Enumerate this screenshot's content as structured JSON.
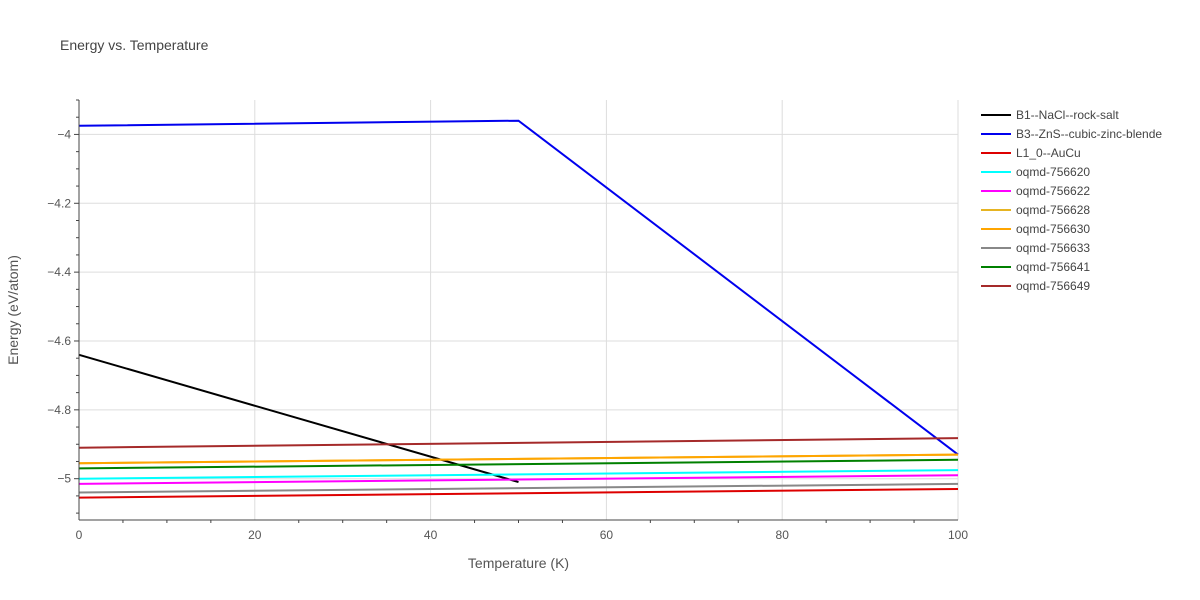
{
  "chart_data": {
    "type": "line",
    "title": "Energy vs. Temperature",
    "xlabel": "Temperature (K)",
    "ylabel": "Energy (eV/atom)",
    "xlim": [
      0,
      100
    ],
    "ylim": [
      -5.12,
      -3.9
    ],
    "x_ticks": [
      0,
      20,
      40,
      60,
      80,
      100
    ],
    "y_ticks": [
      -4,
      -4.2,
      -4.4,
      -4.6,
      -4.8,
      -5
    ],
    "y_tick_labels": [
      "−4",
      "−4.2",
      "−4.4",
      "−4.6",
      "−4.8",
      "−5"
    ],
    "grid": true,
    "legend_position": "right",
    "series": [
      {
        "name": "B1--NaCl--rock-salt",
        "color": "#000000",
        "x": [
          0,
          50
        ],
        "y": [
          -4.64,
          -5.01
        ]
      },
      {
        "name": "B3--ZnS--cubic-zinc-blende",
        "color": "#0000ee",
        "x": [
          0,
          50,
          100
        ],
        "y": [
          -3.975,
          -3.96,
          -4.93
        ]
      },
      {
        "name": "L1_0--AuCu",
        "color": "#dd0000",
        "x": [
          0,
          100
        ],
        "y": [
          -5.055,
          -5.03
        ]
      },
      {
        "name": "oqmd-756620",
        "color": "#00ffff",
        "x": [
          0,
          100
        ],
        "y": [
          -5.0,
          -4.975
        ]
      },
      {
        "name": "oqmd-756622",
        "color": "#ff00ff",
        "x": [
          0,
          100
        ],
        "y": [
          -5.015,
          -4.99
        ]
      },
      {
        "name": "oqmd-756628",
        "color": "#e6b422",
        "x": [
          0,
          100
        ],
        "y": [
          -4.955,
          -4.93
        ]
      },
      {
        "name": "oqmd-756630",
        "color": "#ffa500",
        "x": [
          0,
          100
        ],
        "y": [
          -4.955,
          -4.93
        ]
      },
      {
        "name": "oqmd-756633",
        "color": "#888888",
        "x": [
          0,
          100
        ],
        "y": [
          -5.04,
          -5.015
        ]
      },
      {
        "name": "oqmd-756641",
        "color": "#008000",
        "x": [
          0,
          100
        ],
        "y": [
          -4.97,
          -4.945
        ]
      },
      {
        "name": "oqmd-756649",
        "color": "#a52a2a",
        "x": [
          0,
          100
        ],
        "y": [
          -4.91,
          -4.882
        ]
      }
    ]
  }
}
